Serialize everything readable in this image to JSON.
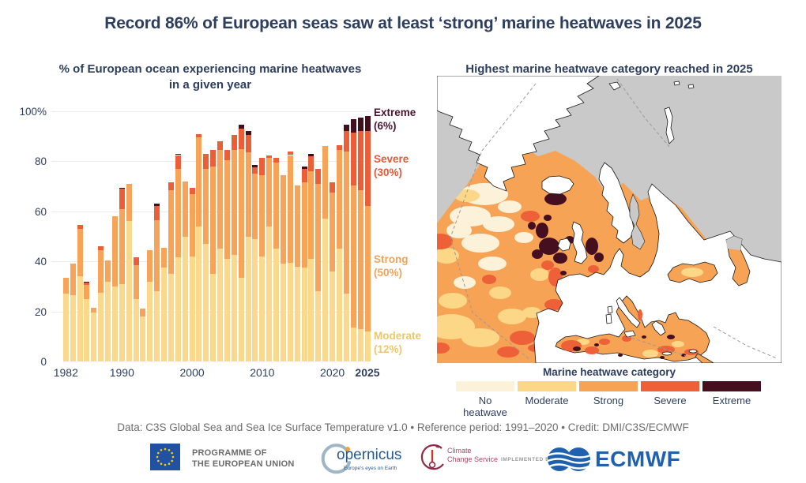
{
  "page": {
    "title": "Record 86% of European seas saw at least ‘strong’ marine heatwaves in 2025"
  },
  "colors": {
    "navy": "#2d3e5e",
    "moderate": "#FBD98C",
    "strong": "#F7A458",
    "severe": "#EB5E37",
    "extreme": "#420F1F",
    "no_heatwave": "#FCF2D9",
    "grey_nodata": "#c9c9c9"
  },
  "chart": {
    "title_line1": "% of European ocean experiencing marine heatwaves",
    "title_line2": "in a given year",
    "y_ticks": [
      {
        "label": "100%",
        "value": 100
      },
      {
        "label": "80",
        "value": 80
      },
      {
        "label": "60",
        "value": 60
      },
      {
        "label": "40",
        "value": 40
      },
      {
        "label": "20",
        "value": 20
      },
      {
        "label": "0",
        "value": 0
      }
    ],
    "x_ticks": [
      {
        "label": "1982",
        "year": 1982,
        "bold": false
      },
      {
        "label": "1990",
        "year": 1990,
        "bold": false
      },
      {
        "label": "2000",
        "year": 2000,
        "bold": false
      },
      {
        "label": "2010",
        "year": 2010,
        "bold": false
      },
      {
        "label": "2020",
        "year": 2020,
        "bold": false
      },
      {
        "label": "2025",
        "year": 2025,
        "bold": true
      }
    ],
    "legend": [
      {
        "label": "Extreme",
        "pct": "(6%)",
        "color": "#4d1430"
      },
      {
        "label": "Severe",
        "pct": "(30%)",
        "color": "#e0593a"
      },
      {
        "label": "Strong",
        "pct": "(50%)",
        "color": "#f1a35c"
      },
      {
        "label": "Moderate",
        "pct": "(12%)",
        "color": "#eec768"
      }
    ]
  },
  "chart_data": {
    "type": "bar",
    "stacked": true,
    "title": "% of European ocean experiencing marine heatwaves in a given year",
    "ylim": [
      0,
      100
    ],
    "grid": true,
    "categories": [
      1982,
      1983,
      1984,
      1985,
      1986,
      1987,
      1988,
      1989,
      1990,
      1991,
      1992,
      1993,
      1994,
      1995,
      1996,
      1997,
      1998,
      1999,
      2000,
      2001,
      2002,
      2003,
      2004,
      2005,
      2006,
      2007,
      2008,
      2009,
      2010,
      2011,
      2012,
      2013,
      2014,
      2015,
      2016,
      2017,
      2018,
      2019,
      2020,
      2021,
      2022,
      2023,
      2024,
      2025
    ],
    "series": [
      {
        "name": "Moderate",
        "color": "#FBD98C",
        "values": [
          27,
          26.5,
          34,
          25,
          19.5,
          27.5,
          32,
          30,
          31,
          56,
          25,
          18,
          32,
          28,
          37.5,
          35,
          41.5,
          50,
          42,
          54,
          47,
          35,
          45,
          41,
          42.5,
          33.5,
          50,
          49,
          42,
          54,
          45,
          39,
          39.5,
          38,
          37.5,
          41,
          28,
          57,
          36,
          45,
          27,
          13.5,
          13,
          12
        ]
      },
      {
        "name": "Strong",
        "color": "#F7A458",
        "values": [
          6.5,
          12.5,
          19,
          5.5,
          2,
          17,
          8.5,
          28,
          30,
          15,
          13.5,
          3,
          12.5,
          28.5,
          8,
          33.5,
          35.5,
          22,
          25,
          35.5,
          30,
          43,
          39.5,
          39.5,
          42,
          51.5,
          33.5,
          26,
          32.5,
          27.5,
          34.5,
          35.5,
          43,
          32.5,
          34,
          35,
          43,
          29,
          31.5,
          39.5,
          57,
          57,
          55.5,
          50
        ]
      },
      {
        "name": "Severe",
        "color": "#EB5E37",
        "values": [
          0,
          0,
          1.5,
          1,
          0,
          1.5,
          0,
          0,
          8,
          0,
          3,
          0,
          0,
          5.5,
          0,
          3,
          5.5,
          0,
          2.5,
          1.5,
          6,
          6.5,
          3.5,
          4,
          6,
          8,
          7,
          2.5,
          7,
          1,
          2,
          0,
          1.5,
          0,
          5.5,
          6,
          6,
          0,
          4,
          2,
          8,
          21,
          23.5,
          30
        ]
      },
      {
        "name": "Extreme",
        "color": "#420F1F",
        "values": [
          0,
          0,
          0,
          0.5,
          0,
          0,
          0,
          0,
          0.5,
          0,
          0,
          0,
          0,
          1,
          0,
          0,
          0.5,
          0,
          0,
          0,
          0,
          0,
          0,
          0,
          0,
          1.5,
          1.5,
          1,
          0,
          0,
          0,
          0,
          0,
          0,
          1,
          1,
          0,
          0,
          0,
          0,
          2.5,
          5.5,
          5.5,
          6
        ]
      }
    ],
    "annotations_2025": {
      "extreme": "6%",
      "severe": "30%",
      "strong": "50%",
      "moderate": "12%"
    }
  },
  "map": {
    "title": "Highest marine heatwave category reached in 2025",
    "legend_title": "Marine heatwave category",
    "legend": [
      {
        "label": "No heatwave",
        "color": "#FCF2D9"
      },
      {
        "label": "Moderate",
        "color": "#FBD787"
      },
      {
        "label": "Strong",
        "color": "#F7A355"
      },
      {
        "label": "Severe",
        "color": "#ED6038"
      },
      {
        "label": "Extreme",
        "color": "#450F1F"
      }
    ]
  },
  "footer": {
    "credit": "Data: C3S Global Sea and Sea Ice Surface Temperature v1.0 • Reference period: 1991–2020 • Credit: DMI/C3S/ECMWF",
    "eu_line1": "PROGRAMME OF",
    "eu_line2": "THE EUROPEAN UNION",
    "copernicus_text": "opernicus",
    "copernicus_tagline": "Europe's eyes on Earth",
    "ccs_line1": "Climate",
    "ccs_line2": "Change Service",
    "implemented_by": "IMPLEMENTED BY",
    "ecmwf": "ECMWF"
  }
}
